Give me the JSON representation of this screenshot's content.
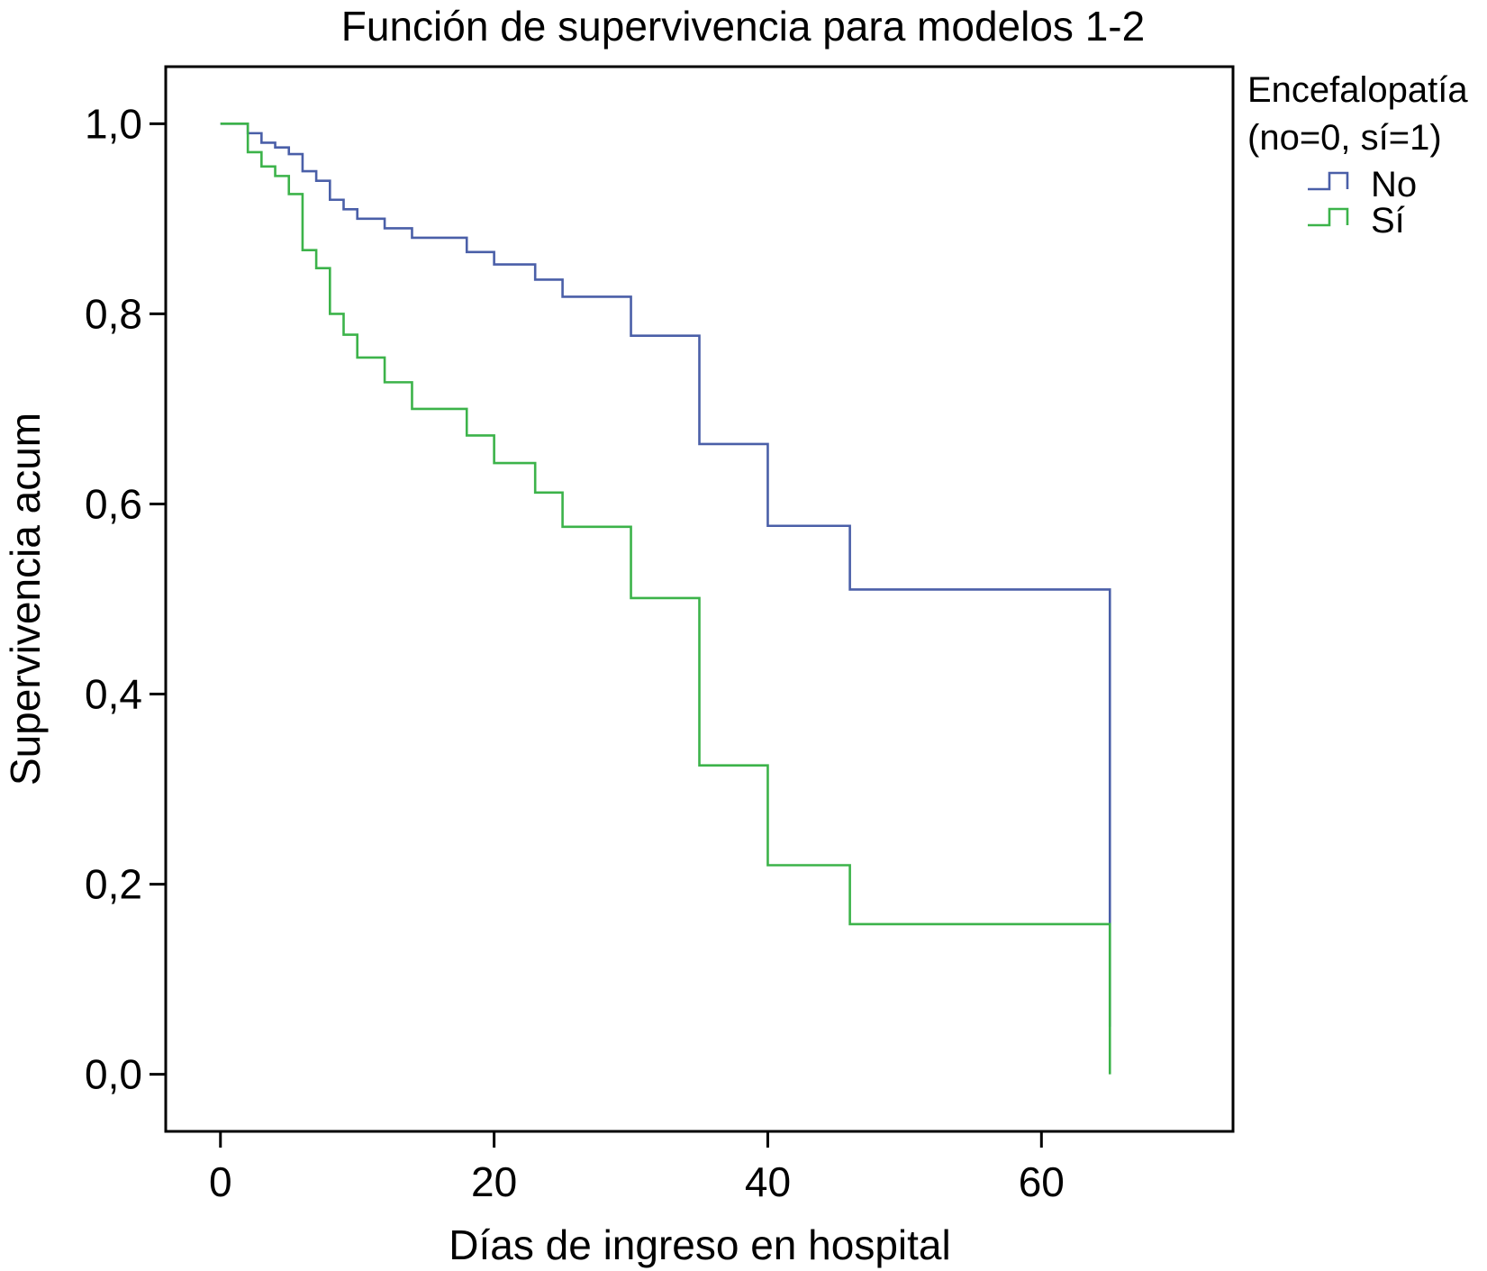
{
  "chart_data": {
    "type": "line",
    "step": true,
    "title": "Función de supervivencia para modelos 1-2",
    "xlabel": "Días de ingreso en hospital",
    "ylabel": "Supervivencia acum",
    "xlim": [
      -4,
      74
    ],
    "ylim": [
      -0.06,
      1.06
    ],
    "x_ticks": [
      0,
      20,
      40,
      60
    ],
    "x_tick_labels": [
      "0",
      "20",
      "40",
      "60"
    ],
    "y_ticks": [
      0.0,
      0.2,
      0.4,
      0.6,
      0.8,
      1.0
    ],
    "y_tick_labels": [
      "0,0",
      "0,2",
      "0,4",
      "0,6",
      "0,8",
      "1,0"
    ],
    "grid": false,
    "legend": {
      "title_lines": [
        "Encefalopatía",
        "(no=0, sí=1)"
      ],
      "placement": "right"
    },
    "series": [
      {
        "name": "No",
        "color": "#4a5fa8",
        "x": [
          0,
          2,
          3,
          4,
          5,
          6,
          7,
          8,
          9,
          10,
          12,
          14,
          18,
          20,
          23,
          25,
          30,
          35,
          40,
          46,
          65,
          65
        ],
        "y": [
          1.0,
          0.99,
          0.98,
          0.975,
          0.968,
          0.95,
          0.94,
          0.92,
          0.91,
          0.9,
          0.89,
          0.88,
          0.865,
          0.852,
          0.836,
          0.818,
          0.777,
          0.663,
          0.577,
          0.51,
          0.333,
          0.05
        ]
      },
      {
        "name": "Sí",
        "color": "#3cb34a",
        "x": [
          0,
          2,
          3,
          4,
          5,
          6,
          7,
          8,
          9,
          10,
          12,
          14,
          18,
          20,
          23,
          25,
          30,
          35,
          40,
          46,
          65,
          65
        ],
        "y": [
          1.0,
          0.97,
          0.955,
          0.945,
          0.926,
          0.867,
          0.848,
          0.8,
          0.778,
          0.754,
          0.728,
          0.7,
          0.672,
          0.643,
          0.612,
          0.576,
          0.501,
          0.325,
          0.22,
          0.158,
          0.05,
          0.0
        ]
      }
    ]
  }
}
